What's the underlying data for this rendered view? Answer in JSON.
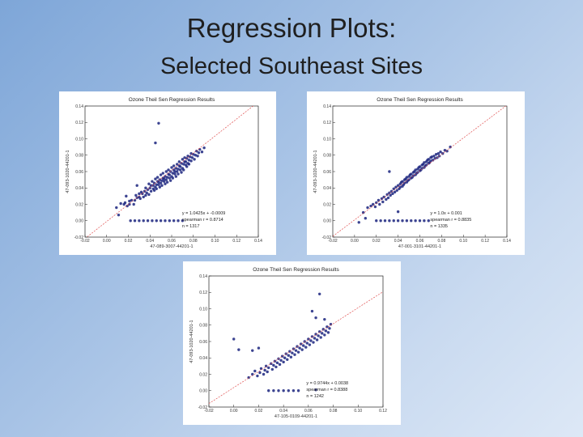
{
  "slide": {
    "title": "Regression Plots:",
    "subtitle": "Selected Southeast Sites",
    "background_colors": [
      "#7ea6d8",
      "#dde8f6"
    ]
  },
  "chart_data": [
    {
      "type": "scatter",
      "title": "Ozone Theil Sen Regression Results",
      "xlabel": "47-089-3007-44201-1",
      "ylabel": "47-093-1020-44201-1",
      "xlim": [
        -0.02,
        0.14
      ],
      "ylim": [
        -0.02,
        0.14
      ],
      "x_ticks": [
        "-0.02",
        "0.00",
        "0.02",
        "0.04",
        "0.06",
        "0.08",
        "0.10",
        "0.12",
        "0.14"
      ],
      "y_ticks": [
        "-0.02",
        "0.00",
        "0.02",
        "0.04",
        "0.06",
        "0.08",
        "0.10",
        "0.12",
        "0.14"
      ],
      "point_color": "#1a237e",
      "line_color": "#e05050",
      "fit": {
        "slope": 1.0425,
        "intercept": -0.0009
      },
      "annotation": [
        "y = 1.0425x + -0.0009",
        "spearman r = 0.8714",
        "n = 1317"
      ],
      "points": [
        [
          0.009,
          0.016
        ],
        [
          0.013,
          0.021
        ],
        [
          0.016,
          0.02
        ],
        [
          0.017,
          0.022
        ],
        [
          0.019,
          0.018
        ],
        [
          0.021,
          0.02
        ],
        [
          0.021,
          0.024
        ],
        [
          0.023,
          0.025
        ],
        [
          0.025,
          0.02
        ],
        [
          0.026,
          0.025
        ],
        [
          0.027,
          0.031
        ],
        [
          0.028,
          0.028
        ],
        [
          0.03,
          0.029
        ],
        [
          0.03,
          0.033
        ],
        [
          0.031,
          0.027
        ],
        [
          0.032,
          0.035
        ],
        [
          0.033,
          0.033
        ],
        [
          0.034,
          0.029
        ],
        [
          0.035,
          0.036
        ],
        [
          0.036,
          0.04
        ],
        [
          0.036,
          0.031
        ],
        [
          0.037,
          0.034
        ],
        [
          0.038,
          0.038
        ],
        [
          0.039,
          0.045
        ],
        [
          0.039,
          0.032
        ],
        [
          0.04,
          0.04
        ],
        [
          0.041,
          0.036
        ],
        [
          0.041,
          0.043
        ],
        [
          0.042,
          0.048
        ],
        [
          0.043,
          0.039
        ],
        [
          0.043,
          0.043
        ],
        [
          0.044,
          0.037
        ],
        [
          0.044,
          0.046
        ],
        [
          0.045,
          0.051
        ],
        [
          0.045,
          0.041
        ],
        [
          0.046,
          0.044
        ],
        [
          0.046,
          0.039
        ],
        [
          0.047,
          0.048
        ],
        [
          0.047,
          0.053
        ],
        [
          0.048,
          0.044
        ],
        [
          0.048,
          0.047
        ],
        [
          0.049,
          0.041
        ],
        [
          0.049,
          0.05
        ],
        [
          0.05,
          0.056
        ],
        [
          0.05,
          0.046
        ],
        [
          0.051,
          0.049
        ],
        [
          0.051,
          0.043
        ],
        [
          0.052,
          0.052
        ],
        [
          0.052,
          0.058
        ],
        [
          0.053,
          0.048
        ],
        [
          0.053,
          0.051
        ],
        [
          0.054,
          0.045
        ],
        [
          0.054,
          0.054
        ],
        [
          0.055,
          0.06
        ],
        [
          0.055,
          0.05
        ],
        [
          0.056,
          0.053
        ],
        [
          0.056,
          0.047
        ],
        [
          0.057,
          0.057
        ],
        [
          0.057,
          0.062
        ],
        [
          0.058,
          0.052
        ],
        [
          0.058,
          0.056
        ],
        [
          0.059,
          0.049
        ],
        [
          0.059,
          0.06
        ],
        [
          0.06,
          0.065
        ],
        [
          0.06,
          0.054
        ],
        [
          0.061,
          0.058
        ],
        [
          0.061,
          0.052
        ],
        [
          0.062,
          0.062
        ],
        [
          0.062,
          0.067
        ],
        [
          0.063,
          0.057
        ],
        [
          0.063,
          0.06
        ],
        [
          0.064,
          0.054
        ],
        [
          0.064,
          0.064
        ],
        [
          0.065,
          0.069
        ],
        [
          0.065,
          0.06
        ],
        [
          0.066,
          0.063
        ],
        [
          0.066,
          0.057
        ],
        [
          0.067,
          0.067
        ],
        [
          0.067,
          0.072
        ],
        [
          0.068,
          0.062
        ],
        [
          0.068,
          0.066
        ],
        [
          0.069,
          0.059
        ],
        [
          0.069,
          0.07
        ],
        [
          0.07,
          0.075
        ],
        [
          0.07,
          0.064
        ],
        [
          0.071,
          0.069
        ],
        [
          0.071,
          0.062
        ],
        [
          0.072,
          0.072
        ],
        [
          0.072,
          0.077
        ],
        [
          0.073,
          0.068
        ],
        [
          0.073,
          0.072
        ],
        [
          0.074,
          0.066
        ],
        [
          0.074,
          0.076
        ],
        [
          0.075,
          0.079
        ],
        [
          0.075,
          0.07
        ],
        [
          0.076,
          0.074
        ],
        [
          0.076,
          0.069
        ],
        [
          0.077,
          0.078
        ],
        [
          0.078,
          0.082
        ],
        [
          0.078,
          0.073
        ],
        [
          0.079,
          0.077
        ],
        [
          0.08,
          0.081
        ],
        [
          0.081,
          0.075
        ],
        [
          0.082,
          0.08
        ],
        [
          0.083,
          0.085
        ],
        [
          0.084,
          0.079
        ],
        [
          0.085,
          0.083
        ],
        [
          0.086,
          0.087
        ],
        [
          0.088,
          0.084
        ],
        [
          0.09,
          0.089
        ],
        [
          0.045,
          0.095
        ],
        [
          0.028,
          0.043
        ],
        [
          0.011,
          0.007
        ],
        [
          0.018,
          0.03
        ],
        [
          0.022,
          0.0
        ],
        [
          0.026,
          0.0
        ],
        [
          0.03,
          0.0
        ],
        [
          0.034,
          0.0
        ],
        [
          0.038,
          0.0
        ],
        [
          0.042,
          0.0
        ],
        [
          0.046,
          0.0
        ],
        [
          0.05,
          0.0
        ],
        [
          0.054,
          0.0
        ],
        [
          0.058,
          0.0
        ],
        [
          0.062,
          0.0
        ],
        [
          0.066,
          0.0
        ],
        [
          0.07,
          0.0
        ],
        [
          0.048,
          0.119
        ]
      ]
    },
    {
      "type": "scatter",
      "title": "Ozone Theil Sen Regression Results",
      "xlabel": "47-001-3101-44201-1",
      "ylabel": "47-093-1020-44201-1",
      "xlim": [
        -0.02,
        0.14
      ],
      "ylim": [
        -0.02,
        0.14
      ],
      "x_ticks": [
        "-0.02",
        "0.00",
        "0.02",
        "0.04",
        "0.06",
        "0.08",
        "0.10",
        "0.12",
        "0.14"
      ],
      "y_ticks": [
        "-0.02",
        "0.00",
        "0.02",
        "0.04",
        "0.06",
        "0.08",
        "0.10",
        "0.12",
        "0.14"
      ],
      "point_color": "#1a237e",
      "line_color": "#e05050",
      "fit": {
        "slope": 1.0,
        "intercept": 0.001
      },
      "annotation": [
        "y = 1.0x + 0.001",
        "spearman r = 0.8835",
        "n = 1335"
      ],
      "points": [
        [
          0.008,
          0.01
        ],
        [
          0.012,
          0.016
        ],
        [
          0.015,
          0.018
        ],
        [
          0.017,
          0.02
        ],
        [
          0.019,
          0.017
        ],
        [
          0.02,
          0.022
        ],
        [
          0.022,
          0.025
        ],
        [
          0.023,
          0.02
        ],
        [
          0.025,
          0.027
        ],
        [
          0.026,
          0.023
        ],
        [
          0.027,
          0.029
        ],
        [
          0.029,
          0.026
        ],
        [
          0.03,
          0.032
        ],
        [
          0.031,
          0.028
        ],
        [
          0.032,
          0.034
        ],
        [
          0.033,
          0.031
        ],
        [
          0.034,
          0.036
        ],
        [
          0.035,
          0.033
        ],
        [
          0.036,
          0.039
        ],
        [
          0.037,
          0.035
        ],
        [
          0.038,
          0.041
        ],
        [
          0.039,
          0.037
        ],
        [
          0.04,
          0.043
        ],
        [
          0.041,
          0.039
        ],
        [
          0.042,
          0.045
        ],
        [
          0.042,
          0.041
        ],
        [
          0.043,
          0.047
        ],
        [
          0.044,
          0.042
        ],
        [
          0.044,
          0.048
        ],
        [
          0.045,
          0.044
        ],
        [
          0.046,
          0.05
        ],
        [
          0.046,
          0.046
        ],
        [
          0.047,
          0.051
        ],
        [
          0.048,
          0.047
        ],
        [
          0.048,
          0.053
        ],
        [
          0.049,
          0.049
        ],
        [
          0.05,
          0.054
        ],
        [
          0.05,
          0.05
        ],
        [
          0.051,
          0.056
        ],
        [
          0.052,
          0.052
        ],
        [
          0.052,
          0.057
        ],
        [
          0.053,
          0.053
        ],
        [
          0.054,
          0.059
        ],
        [
          0.054,
          0.055
        ],
        [
          0.055,
          0.06
        ],
        [
          0.056,
          0.056
        ],
        [
          0.056,
          0.062
        ],
        [
          0.057,
          0.058
        ],
        [
          0.058,
          0.063
        ],
        [
          0.058,
          0.059
        ],
        [
          0.059,
          0.065
        ],
        [
          0.06,
          0.061
        ],
        [
          0.06,
          0.066
        ],
        [
          0.061,
          0.062
        ],
        [
          0.062,
          0.068
        ],
        [
          0.062,
          0.064
        ],
        [
          0.063,
          0.069
        ],
        [
          0.064,
          0.065
        ],
        [
          0.064,
          0.071
        ],
        [
          0.065,
          0.067
        ],
        [
          0.066,
          0.072
        ],
        [
          0.066,
          0.068
        ],
        [
          0.067,
          0.074
        ],
        [
          0.068,
          0.07
        ],
        [
          0.068,
          0.075
        ],
        [
          0.069,
          0.071
        ],
        [
          0.07,
          0.077
        ],
        [
          0.07,
          0.073
        ],
        [
          0.071,
          0.078
        ],
        [
          0.072,
          0.074
        ],
        [
          0.073,
          0.079
        ],
        [
          0.074,
          0.076
        ],
        [
          0.075,
          0.081
        ],
        [
          0.076,
          0.077
        ],
        [
          0.077,
          0.082
        ],
        [
          0.078,
          0.079
        ],
        [
          0.079,
          0.084
        ],
        [
          0.081,
          0.082
        ],
        [
          0.083,
          0.086
        ],
        [
          0.085,
          0.085
        ],
        [
          0.088,
          0.09
        ],
        [
          0.032,
          0.06
        ],
        [
          0.01,
          0.003
        ],
        [
          0.004,
          -0.002
        ],
        [
          0.02,
          0.0
        ],
        [
          0.024,
          0.0
        ],
        [
          0.028,
          0.0
        ],
        [
          0.032,
          0.0
        ],
        [
          0.036,
          0.0
        ],
        [
          0.04,
          0.0
        ],
        [
          0.044,
          0.0
        ],
        [
          0.048,
          0.0
        ],
        [
          0.052,
          0.0
        ],
        [
          0.056,
          0.0
        ],
        [
          0.06,
          0.0
        ],
        [
          0.064,
          0.0
        ],
        [
          0.068,
          0.0
        ],
        [
          0.04,
          0.011
        ]
      ]
    },
    {
      "type": "scatter",
      "title": "Ozone Theil Sen Regression Results",
      "xlabel": "47-105-0109-44201-1",
      "ylabel": "47-093-1020-44201-1",
      "xlim": [
        -0.02,
        0.12
      ],
      "ylim": [
        -0.02,
        0.14
      ],
      "x_ticks": [
        "-0.02",
        "0.00",
        "0.02",
        "0.04",
        "0.06",
        "0.08",
        "0.10",
        "0.12"
      ],
      "y_ticks": [
        "-0.02",
        "0.00",
        "0.02",
        "0.04",
        "0.06",
        "0.08",
        "0.10",
        "0.12",
        "0.14"
      ],
      "point_color": "#1a237e",
      "line_color": "#e05050",
      "fit": {
        "slope": 0.9744,
        "intercept": 0.0038
      },
      "annotation": [
        "y = 0.9744x + 0.0038",
        "spearman r = 0.8388",
        "n = 1242"
      ],
      "points": [
        [
          0.012,
          0.016
        ],
        [
          0.015,
          0.02
        ],
        [
          0.017,
          0.024
        ],
        [
          0.019,
          0.018
        ],
        [
          0.021,
          0.022
        ],
        [
          0.022,
          0.027
        ],
        [
          0.024,
          0.02
        ],
        [
          0.025,
          0.025
        ],
        [
          0.026,
          0.03
        ],
        [
          0.027,
          0.023
        ],
        [
          0.028,
          0.028
        ],
        [
          0.03,
          0.033
        ],
        [
          0.031,
          0.026
        ],
        [
          0.032,
          0.031
        ],
        [
          0.033,
          0.036
        ],
        [
          0.034,
          0.029
        ],
        [
          0.035,
          0.034
        ],
        [
          0.036,
          0.039
        ],
        [
          0.037,
          0.032
        ],
        [
          0.038,
          0.037
        ],
        [
          0.039,
          0.042
        ],
        [
          0.04,
          0.035
        ],
        [
          0.041,
          0.04
        ],
        [
          0.042,
          0.045
        ],
        [
          0.043,
          0.038
        ],
        [
          0.044,
          0.043
        ],
        [
          0.045,
          0.048
        ],
        [
          0.046,
          0.041
        ],
        [
          0.047,
          0.046
        ],
        [
          0.048,
          0.051
        ],
        [
          0.049,
          0.044
        ],
        [
          0.05,
          0.049
        ],
        [
          0.051,
          0.054
        ],
        [
          0.052,
          0.047
        ],
        [
          0.053,
          0.052
        ],
        [
          0.054,
          0.057
        ],
        [
          0.055,
          0.05
        ],
        [
          0.056,
          0.055
        ],
        [
          0.057,
          0.06
        ],
        [
          0.058,
          0.053
        ],
        [
          0.059,
          0.058
        ],
        [
          0.06,
          0.063
        ],
        [
          0.061,
          0.056
        ],
        [
          0.062,
          0.061
        ],
        [
          0.063,
          0.066
        ],
        [
          0.064,
          0.059
        ],
        [
          0.065,
          0.064
        ],
        [
          0.066,
          0.069
        ],
        [
          0.067,
          0.062
        ],
        [
          0.068,
          0.067
        ],
        [
          0.069,
          0.072
        ],
        [
          0.07,
          0.065
        ],
        [
          0.071,
          0.07
        ],
        [
          0.072,
          0.075
        ],
        [
          0.073,
          0.068
        ],
        [
          0.074,
          0.073
        ],
        [
          0.075,
          0.078
        ],
        [
          0.076,
          0.071
        ],
        [
          0.077,
          0.076
        ],
        [
          0.078,
          0.081
        ],
        [
          0.0,
          0.063
        ],
        [
          0.004,
          0.05
        ],
        [
          0.015,
          0.049
        ],
        [
          0.02,
          0.052
        ],
        [
          0.028,
          0.0
        ],
        [
          0.032,
          0.0
        ],
        [
          0.036,
          0.0
        ],
        [
          0.04,
          0.0
        ],
        [
          0.044,
          0.0
        ],
        [
          0.048,
          0.0
        ],
        [
          0.052,
          0.0
        ],
        [
          0.066,
          0.001
        ],
        [
          0.069,
          0.118
        ],
        [
          0.063,
          0.097
        ],
        [
          0.073,
          0.087
        ],
        [
          0.066,
          0.089
        ]
      ]
    }
  ]
}
